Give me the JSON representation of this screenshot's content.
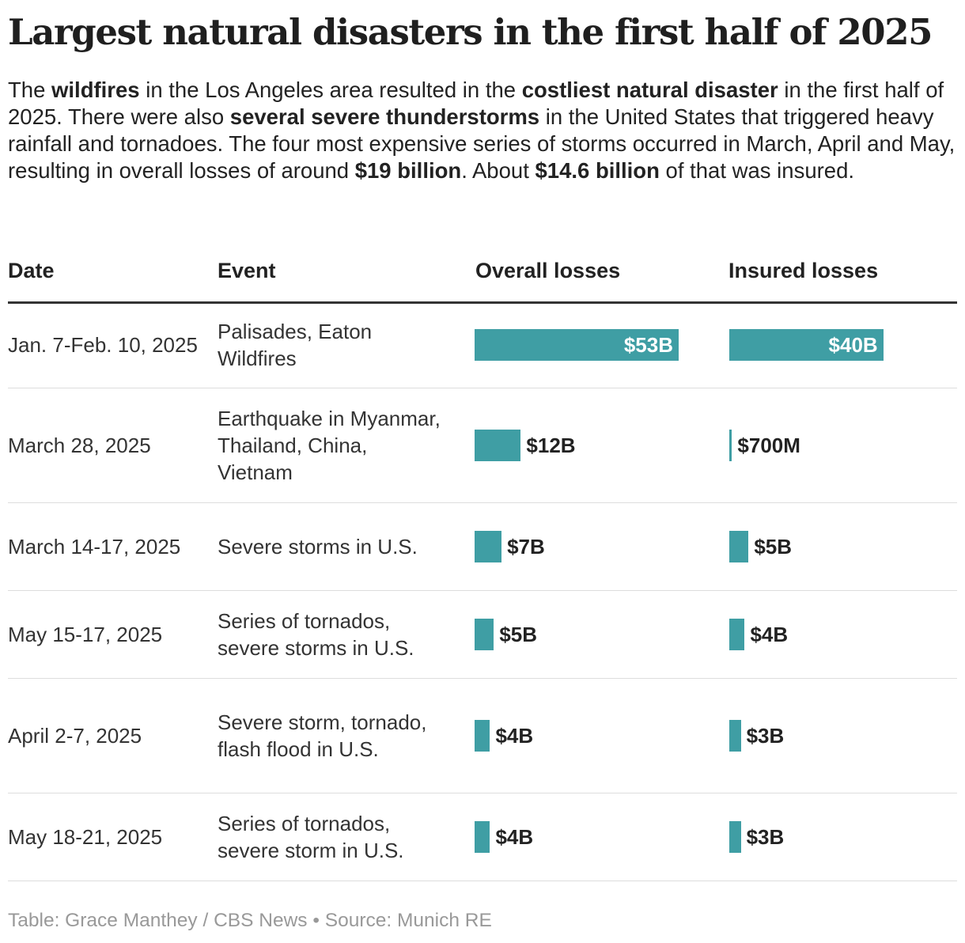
{
  "title": "Largest natural disasters in the first half of 2025",
  "intro": [
    {
      "text": "The ",
      "bold": false
    },
    {
      "text": "wildfires",
      "bold": true
    },
    {
      "text": " in the Los Angeles area resulted in the ",
      "bold": false
    },
    {
      "text": "costliest natural disaster",
      "bold": true
    },
    {
      "text": " in the first half of 2025. There were also ",
      "bold": false
    },
    {
      "text": "several severe thunderstorms",
      "bold": true
    },
    {
      "text": " in the United States that triggered heavy rainfall and tornadoes. The four most expensive series of storms occurred in March, April and May, resulting in overall losses of around ",
      "bold": false
    },
    {
      "text": "$19 billion",
      "bold": true
    },
    {
      "text": ". About ",
      "bold": false
    },
    {
      "text": "$14.6 billion",
      "bold": true
    },
    {
      "text": " of that was insured.",
      "bold": false
    }
  ],
  "columns": {
    "date": "Date",
    "event": "Event",
    "overall": "Overall losses",
    "insured": "Insured losses"
  },
  "chart_data": {
    "type": "table",
    "unit": "billion USD",
    "scale_max": 53,
    "rows": [
      {
        "date": "Jan. 7-Feb. 10, 2025",
        "event": "Palisades, Eaton Wildfires",
        "overall": 53,
        "overall_label": "$53B",
        "insured": 40,
        "insured_label": "$40B"
      },
      {
        "date": "March 28, 2025",
        "event": "Earthquake in Myanmar, Thailand, China, Vietnam",
        "overall": 12,
        "overall_label": "$12B",
        "insured": 0.7,
        "insured_label": "$700M"
      },
      {
        "date": "March 14-17, 2025",
        "event": "Severe storms in U.S.",
        "overall": 7,
        "overall_label": "$7B",
        "insured": 5,
        "insured_label": "$5B"
      },
      {
        "date": "May 15-17, 2025",
        "event": "Series of tornados, severe storms in U.S.",
        "overall": 5,
        "overall_label": "$5B",
        "insured": 4,
        "insured_label": "$4B"
      },
      {
        "date": "April 2-7, 2025",
        "event": "Severe storm, tornado, flash flood in U.S.",
        "overall": 4,
        "overall_label": "$4B",
        "insured": 3,
        "insured_label": "$3B"
      },
      {
        "date": "May 18-21, 2025",
        "event": "Series of tornados, severe storm in U.S.",
        "overall": 4,
        "overall_label": "$4B",
        "insured": 3,
        "insured_label": "$3B"
      }
    ]
  },
  "colors": {
    "bar": "#3f9ea4"
  },
  "footer": "Table: Grace Manthey / CBS News • Source: Munich RE"
}
